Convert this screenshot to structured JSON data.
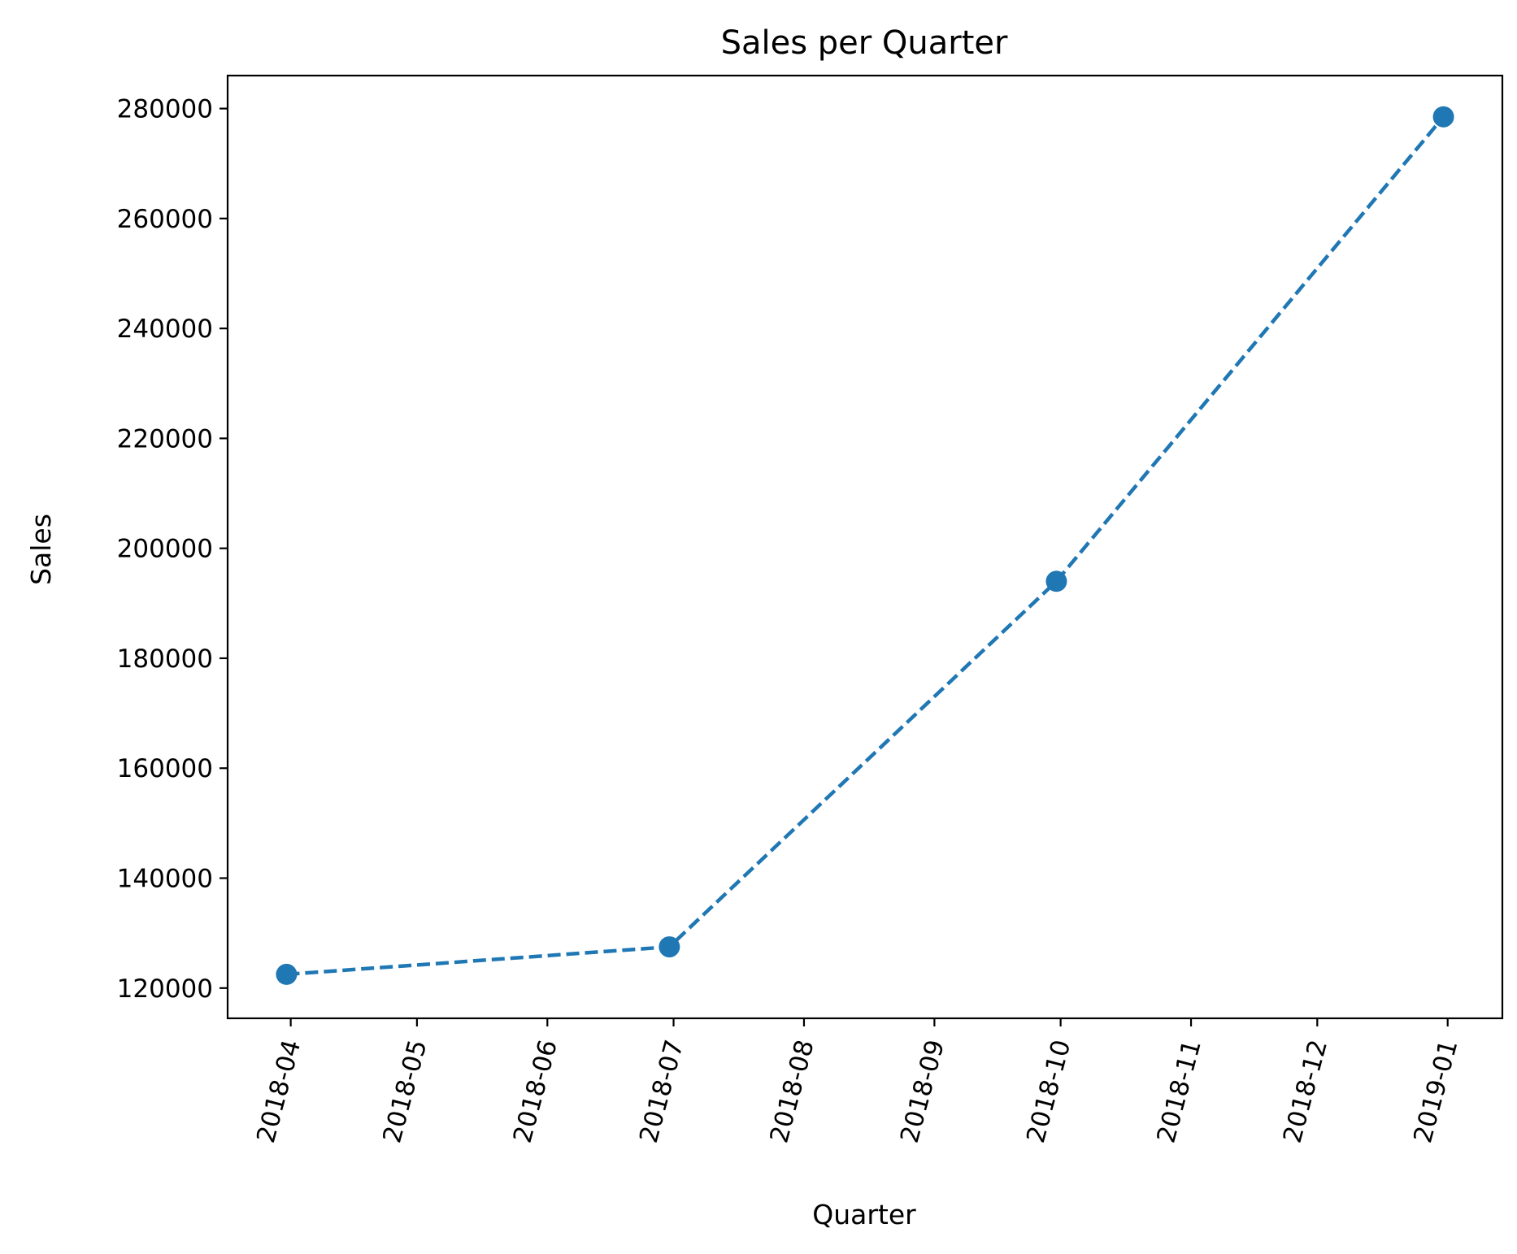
{
  "chart_data": {
    "type": "line",
    "title": "Sales per Quarter",
    "xlabel": "Quarter",
    "ylabel": "Sales",
    "x_ticks": [
      "2018-04",
      "2018-05",
      "2018-06",
      "2018-07",
      "2018-08",
      "2018-09",
      "2018-10",
      "2018-11",
      "2018-12",
      "2019-01"
    ],
    "y_ticks": [
      120000,
      140000,
      160000,
      180000,
      200000,
      220000,
      240000,
      260000,
      280000
    ],
    "xlim": [
      "2018-03-17",
      "2019-01-14"
    ],
    "ylim": [
      114500,
      286000
    ],
    "grid": false,
    "legend": "none",
    "series": [
      {
        "color": "#1f77b4",
        "line_style": "dashed",
        "marker": "circle",
        "points": [
          {
            "x": "2018-03-31",
            "y": 122500
          },
          {
            "x": "2018-06-30",
            "y": 127500
          },
          {
            "x": "2018-09-30",
            "y": 194000
          },
          {
            "x": "2018-12-31",
            "y": 278500
          }
        ]
      }
    ]
  }
}
